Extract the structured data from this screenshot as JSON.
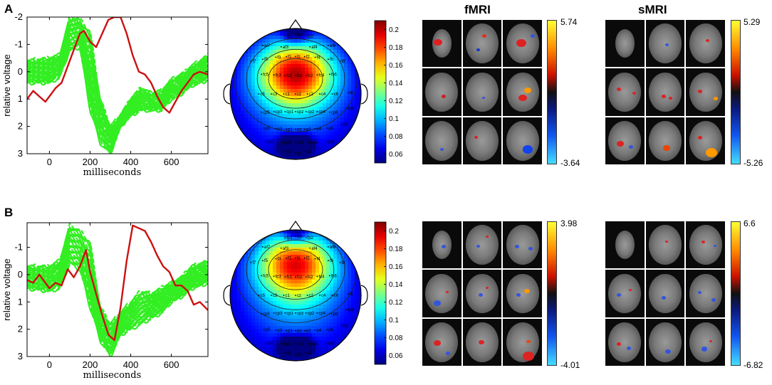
{
  "panels": [
    {
      "letter": "A",
      "erp": {
        "ylabel": "relative voltage",
        "xlabel": "milliseconds",
        "y_ticks": [
          "-2",
          "-1",
          "0",
          "1",
          "2",
          "3"
        ],
        "x_ticks": [
          "0",
          "200",
          "400",
          "600"
        ],
        "colors": {
          "trials": "#33ee22",
          "mean": "#cc1111"
        },
        "chart_data": {
          "type": "line",
          "x_range": [
            -110,
            780
          ],
          "y_range": [
            -2,
            3
          ],
          "y_inverted": true,
          "mean_trace": {
            "x": [
              -110,
              -80,
              -50,
              -20,
              0,
              30,
              60,
              90,
              120,
              150,
              170,
              200,
              230,
              260,
              290,
              320,
              350,
              380,
              410,
              440,
              470,
              500,
              530,
              560,
              590,
              620,
              650,
              680,
              710,
              740,
              780
            ],
            "y": [
              1.0,
              0.7,
              0.9,
              1.1,
              0.9,
              0.6,
              0.4,
              -0.2,
              -0.8,
              -1.4,
              -1.5,
              -1.1,
              -0.9,
              -1.4,
              -1.9,
              -2.0,
              -2.0,
              -1.4,
              -0.6,
              0.0,
              0.1,
              0.4,
              0.9,
              1.3,
              1.5,
              1.1,
              0.7,
              0.4,
              0.1,
              0.0,
              0.1
            ]
          },
          "trials_envelope": {
            "x": [
              -110,
              0,
              50,
              100,
              150,
              200,
              250,
              300,
              350,
              400,
              450,
              500,
              550,
              600,
              650,
              700,
              780
            ],
            "y_low": [
              -0.4,
              -0.5,
              -0.6,
              -2.0,
              -1.9,
              -1.5,
              1.0,
              2.0,
              1.6,
              1.0,
              0.6,
              0.8,
              0.7,
              0.3,
              0.1,
              -0.2,
              -0.6
            ],
            "y_high": [
              0.4,
              0.4,
              0.2,
              -0.8,
              -0.9,
              1.4,
              2.6,
              3.0,
              2.0,
              1.6,
              1.4,
              1.4,
              1.4,
              1.0,
              0.8,
              0.5,
              0.3
            ]
          }
        }
      },
      "topomap": {
        "colorbar_ticks": [
          "0.2",
          "0.18",
          "0.16",
          "0.14",
          "0.12",
          "0.1",
          "0.08",
          "0.06"
        ],
        "hot_center": [
          0.5,
          0.33
        ]
      },
      "fmri": {
        "title": "fMRI",
        "max": "5.74",
        "min": "-3.64"
      },
      "smri": {
        "title": "sMRI",
        "max": "5.29",
        "min": "-5.26"
      }
    },
    {
      "letter": "B",
      "erp": {
        "ylabel": "relative voltage",
        "xlabel": "milliseconds",
        "y_ticks": [
          "-1",
          "0",
          "1",
          "2",
          "3"
        ],
        "x_ticks": [
          "0",
          "200",
          "400",
          "600"
        ],
        "colors": {
          "trials": "#33ee22",
          "mean": "#cc1111"
        },
        "chart_data": {
          "type": "line",
          "x_range": [
            -110,
            780
          ],
          "y_range": [
            -1.9,
            3
          ],
          "y_inverted": true,
          "mean_trace": {
            "x": [
              -110,
              -80,
              -50,
              -20,
              0,
              30,
              60,
              90,
              120,
              150,
              180,
              200,
              230,
              260,
              290,
              320,
              350,
              380,
              410,
              440,
              470,
              500,
              530,
              560,
              590,
              620,
              650,
              680,
              710,
              740,
              780
            ],
            "y": [
              0.2,
              0.3,
              0.0,
              0.3,
              0.5,
              0.3,
              0.4,
              -0.2,
              0.1,
              -0.3,
              -0.9,
              -0.1,
              0.7,
              1.5,
              2.2,
              2.4,
              1.2,
              -0.5,
              -1.8,
              -1.7,
              -1.6,
              -1.2,
              -0.7,
              -0.3,
              -0.1,
              0.4,
              0.4,
              0.6,
              1.1,
              1.0,
              1.3
            ]
          },
          "trials_envelope": {
            "x": [
              -110,
              0,
              50,
              100,
              150,
              200,
              250,
              300,
              350,
              400,
              450,
              500,
              550,
              600,
              650,
              700,
              780
            ],
            "y_low": [
              -0.3,
              -0.3,
              -0.5,
              -1.8,
              -1.6,
              -1.2,
              1.2,
              1.8,
              1.4,
              1.0,
              0.6,
              0.7,
              0.5,
              0.3,
              0.1,
              -0.3,
              -0.5
            ],
            "y_high": [
              0.5,
              0.6,
              0.5,
              -0.4,
              -0.2,
              1.2,
              2.4,
              3.0,
              2.2,
              2.0,
              1.8,
              1.6,
              1.4,
              1.0,
              0.8,
              0.5,
              0.3
            ]
          }
        }
      },
      "topomap": {
        "colorbar_ticks": [
          "0.2",
          "0.18",
          "0.16",
          "0.14",
          "0.12",
          "0.1",
          "0.08",
          "0.06"
        ],
        "hot_center": [
          0.5,
          0.25
        ]
      },
      "fmri": {
        "title": "",
        "max": "3.98",
        "min": "-4.01"
      },
      "smri": {
        "title": "",
        "max": "6.6",
        "min": "-6.82"
      }
    }
  ],
  "electrodes": [
    {
      "label": "fp1"
    },
    {
      "label": "fpz"
    },
    {
      "label": "fp2"
    },
    {
      "label": "af7"
    },
    {
      "label": "af8"
    },
    {
      "label": "af3"
    },
    {
      "label": "af4"
    },
    {
      "label": "f7"
    },
    {
      "label": "f5"
    },
    {
      "label": "f3"
    },
    {
      "label": "f1"
    },
    {
      "label": "fz"
    },
    {
      "label": "f2"
    },
    {
      "label": "f4"
    },
    {
      "label": "f6"
    },
    {
      "label": "f8"
    },
    {
      "label": "fc5"
    },
    {
      "label": "fc3"
    },
    {
      "label": "fc1"
    },
    {
      "label": "fcz"
    },
    {
      "label": "fc2"
    },
    {
      "label": "fc4"
    },
    {
      "label": "fc6"
    },
    {
      "label": "c5"
    },
    {
      "label": "c3"
    },
    {
      "label": "c1"
    },
    {
      "label": "cz"
    },
    {
      "label": "c2"
    },
    {
      "label": "c4"
    },
    {
      "label": "c6"
    },
    {
      "label": "cp5"
    },
    {
      "label": "cp3"
    },
    {
      "label": "cp1"
    },
    {
      "label": "cpz"
    },
    {
      "label": "cp2"
    },
    {
      "label": "cp4"
    },
    {
      "label": "cp6"
    },
    {
      "label": "p5"
    },
    {
      "label": "p3"
    },
    {
      "label": "p1"
    },
    {
      "label": "pz"
    },
    {
      "label": "p2"
    },
    {
      "label": "p4"
    },
    {
      "label": "p6"
    },
    {
      "label": "po7"
    },
    {
      "label": "po3"
    },
    {
      "label": "poz"
    },
    {
      "label": "po4"
    },
    {
      "label": "po8"
    },
    {
      "label": "o1"
    },
    {
      "label": "oz"
    },
    {
      "label": "o2"
    },
    {
      "label": "tp8"
    },
    {
      "label": "p8"
    },
    {
      "label": "t8"
    }
  ]
}
